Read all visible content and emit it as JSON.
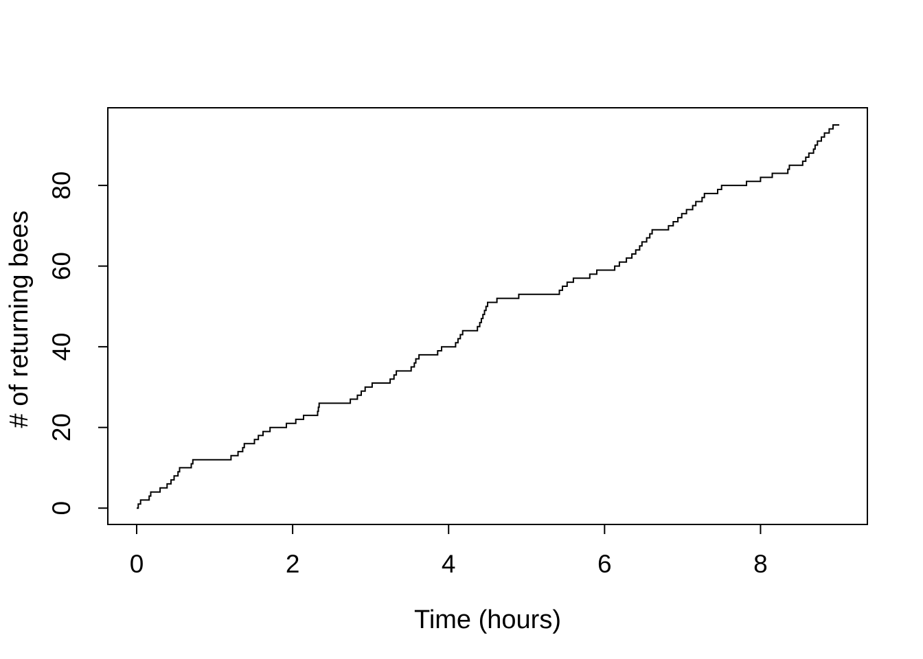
{
  "chart_data": {
    "type": "line",
    "subtype": "step-function-cumulative-counts",
    "title": "",
    "xlabel": "Time (hours)",
    "ylabel": "# of returning bees",
    "x_ticks": [
      0,
      2,
      4,
      6,
      8
    ],
    "y_ticks": [
      0,
      20,
      40,
      60,
      80
    ],
    "xlim": [
      -0.37,
      9.37
    ],
    "ylim": [
      -4.05,
      99.25
    ],
    "grid": false,
    "legend_position": "none",
    "line_color": "#000000",
    "background_color": "#ffffff",
    "frame_color": "#000000",
    "start": {
      "t": 0,
      "count": 0
    },
    "end_time": 9.01,
    "total_bees": 95,
    "jump_times": [
      0.02,
      0.05,
      0.16,
      0.18,
      0.3,
      0.39,
      0.44,
      0.48,
      0.53,
      0.55,
      0.7,
      0.72,
      1.21,
      1.3,
      1.36,
      1.38,
      1.51,
      1.56,
      1.62,
      1.71,
      1.92,
      2.04,
      2.14,
      2.32,
      2.33,
      2.34,
      2.74,
      2.83,
      2.88,
      2.93,
      3.02,
      3.25,
      3.3,
      3.33,
      3.52,
      3.56,
      3.58,
      3.62,
      3.86,
      3.91,
      4.09,
      4.12,
      4.15,
      4.18,
      4.37,
      4.4,
      4.42,
      4.44,
      4.46,
      4.48,
      4.5,
      4.62,
      4.9,
      5.42,
      5.46,
      5.52,
      5.6,
      5.81,
      5.9,
      6.13,
      6.19,
      6.28,
      6.35,
      6.4,
      6.45,
      6.48,
      6.54,
      6.58,
      6.61,
      6.82,
      6.88,
      6.94,
      6.99,
      7.05,
      7.13,
      7.17,
      7.25,
      7.28,
      7.45,
      7.5,
      7.82,
      8.0,
      8.15,
      8.35,
      8.37,
      8.54,
      8.58,
      8.62,
      8.68,
      8.7,
      8.73,
      8.78,
      8.82,
      8.88,
      8.93
    ]
  }
}
